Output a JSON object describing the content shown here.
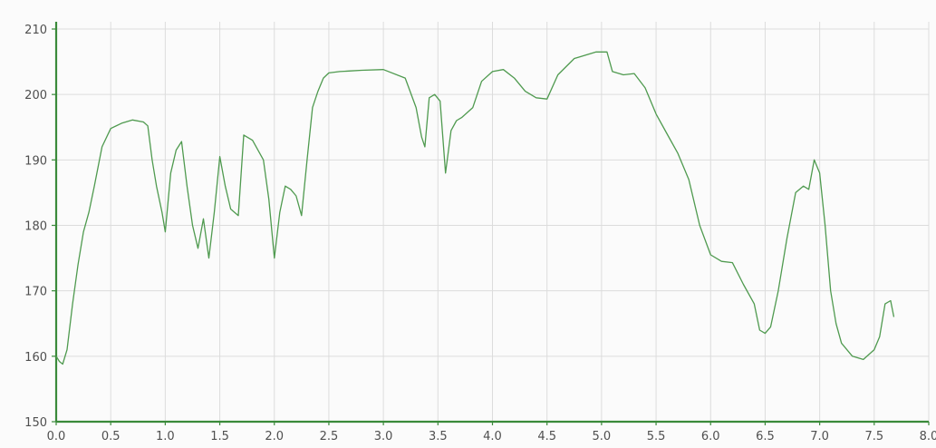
{
  "chart_data": {
    "type": "line",
    "title": "",
    "xlabel": "",
    "ylabel": "",
    "xlim": [
      0,
      8
    ],
    "ylim": [
      150,
      210
    ],
    "grid": true,
    "legend": "none",
    "x_ticks": [
      "0.0",
      "0.5",
      "1.0",
      "1.5",
      "2.0",
      "2.5",
      "3.0",
      "3.5",
      "4.0",
      "4.5",
      "5.0",
      "5.5",
      "6.0",
      "6.5",
      "7.0",
      "7.5",
      "8.0"
    ],
    "y_ticks": [
      "150",
      "160",
      "170",
      "180",
      "190",
      "200",
      "210"
    ],
    "colors": {
      "line": "#4f9a4f",
      "axis": "#3a8a3a",
      "grid": "#dcdcdc"
    },
    "series": [
      {
        "x": [
          0.0,
          0.03,
          0.06,
          0.1,
          0.15,
          0.2,
          0.25,
          0.3,
          0.35,
          0.42,
          0.5,
          0.6,
          0.7,
          0.8,
          0.84,
          0.88,
          0.92,
          0.97,
          1.0,
          1.05,
          1.1,
          1.15,
          1.2,
          1.25,
          1.3,
          1.35,
          1.4,
          1.45,
          1.5,
          1.55,
          1.6,
          1.67,
          1.72,
          1.8,
          1.9,
          1.95,
          2.0,
          2.05,
          2.1,
          2.15,
          2.2,
          2.25,
          2.3,
          2.35,
          2.4,
          2.45,
          2.5,
          2.6,
          2.7,
          2.8,
          3.0,
          3.2,
          3.3,
          3.35,
          3.38,
          3.42,
          3.47,
          3.52,
          3.57,
          3.62,
          3.67,
          3.72,
          3.82,
          3.9,
          4.0,
          4.1,
          4.2,
          4.3,
          4.4,
          4.5,
          4.6,
          4.75,
          4.95,
          5.05,
          5.1,
          5.2,
          5.3,
          5.4,
          5.5,
          5.6,
          5.7,
          5.8,
          5.9,
          6.0,
          6.1,
          6.2,
          6.3,
          6.4,
          6.45,
          6.5,
          6.55,
          6.62,
          6.7,
          6.78,
          6.85,
          6.9,
          6.95,
          7.0,
          7.05,
          7.1,
          7.15,
          7.2,
          7.3,
          7.4,
          7.5,
          7.55,
          7.6,
          7.65,
          7.68
        ],
        "y": [
          160,
          159.2,
          158.8,
          161,
          168,
          174,
          179,
          182,
          186,
          192,
          194.8,
          195.6,
          196.1,
          195.8,
          195.2,
          190,
          186,
          182,
          179,
          188,
          191.5,
          192.8,
          186,
          180,
          176.5,
          181,
          175,
          182,
          190.5,
          186,
          182.5,
          181.5,
          193.8,
          193,
          190,
          184,
          175,
          182,
          186,
          185.5,
          184.5,
          181.5,
          190,
          198,
          200.5,
          202.5,
          203.3,
          203.5,
          203.6,
          203.7,
          203.8,
          202.5,
          198,
          193.5,
          192,
          199.5,
          200,
          199,
          188,
          194.5,
          196,
          196.5,
          198,
          202,
          203.5,
          203.8,
          202.5,
          200.5,
          199.5,
          199.3,
          203,
          205.5,
          206.5,
          206.5,
          203.5,
          203,
          203.2,
          201,
          197,
          194,
          191,
          187,
          180,
          175.5,
          174.5,
          174.3,
          171,
          168,
          164,
          163.5,
          164.5,
          170,
          178,
          185,
          186,
          185.5,
          190,
          188,
          180,
          170,
          165,
          162,
          160,
          159.5,
          161,
          163,
          168,
          168.5,
          166
        ]
      }
    ]
  }
}
